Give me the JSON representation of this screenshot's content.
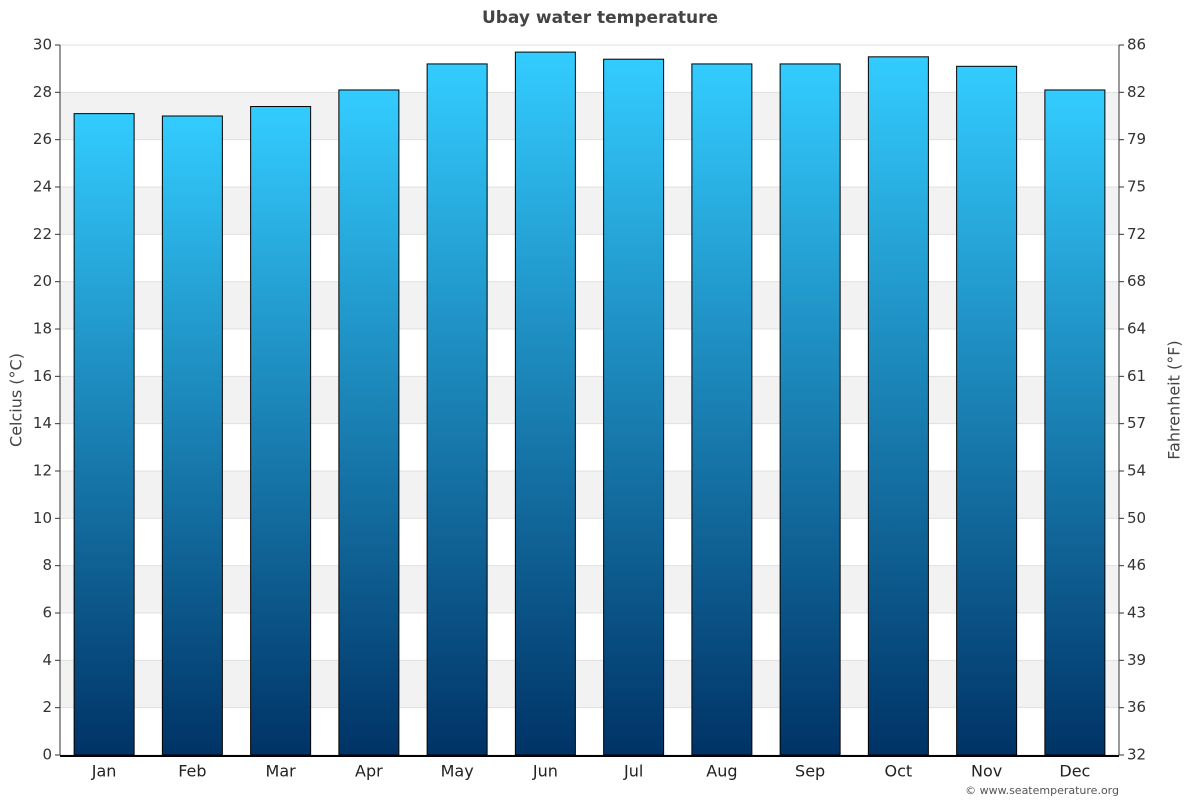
{
  "chart_data": {
    "type": "bar",
    "title": "Ubay water temperature",
    "y_label": "Celcius (°C)",
    "y2_label": "Fahrenheit (°F)",
    "credit": "© www.seatemperature.org",
    "categories": [
      "Jan",
      "Feb",
      "Mar",
      "Apr",
      "May",
      "Jun",
      "Jul",
      "Aug",
      "Sep",
      "Oct",
      "Nov",
      "Dec"
    ],
    "values": [
      27.1,
      27.0,
      27.4,
      28.1,
      29.2,
      29.7,
      29.4,
      29.2,
      29.2,
      29.5,
      29.1,
      28.1
    ],
    "color_top": "#33ccff",
    "color_bottom": "#003366",
    "ylim": [
      0,
      30
    ],
    "yticks": [
      0,
      2,
      4,
      6,
      8,
      10,
      12,
      14,
      16,
      18,
      20,
      22,
      24,
      26,
      28,
      30
    ],
    "y2lim": [
      32,
      86
    ],
    "y2ticks": [
      32,
      {
        "value": 35.6,
        "label": "36"
      },
      {
        "value": 39.2,
        "label": "39"
      },
      {
        "value": 42.8,
        "label": "43"
      },
      {
        "value": 46.4,
        "label": "46"
      },
      50,
      {
        "value": 53.6,
        "label": "54"
      },
      {
        "value": 57.2,
        "label": "57"
      },
      {
        "value": 60.8,
        "label": "61"
      },
      {
        "value": 64.4,
        "label": "64"
      },
      68,
      {
        "value": 71.6,
        "label": "72"
      },
      {
        "value": 75.2,
        "label": "75"
      },
      {
        "value": 78.8,
        "label": "79"
      },
      {
        "value": 82.4,
        "label": "82"
      },
      86
    ],
    "grid": true
  }
}
